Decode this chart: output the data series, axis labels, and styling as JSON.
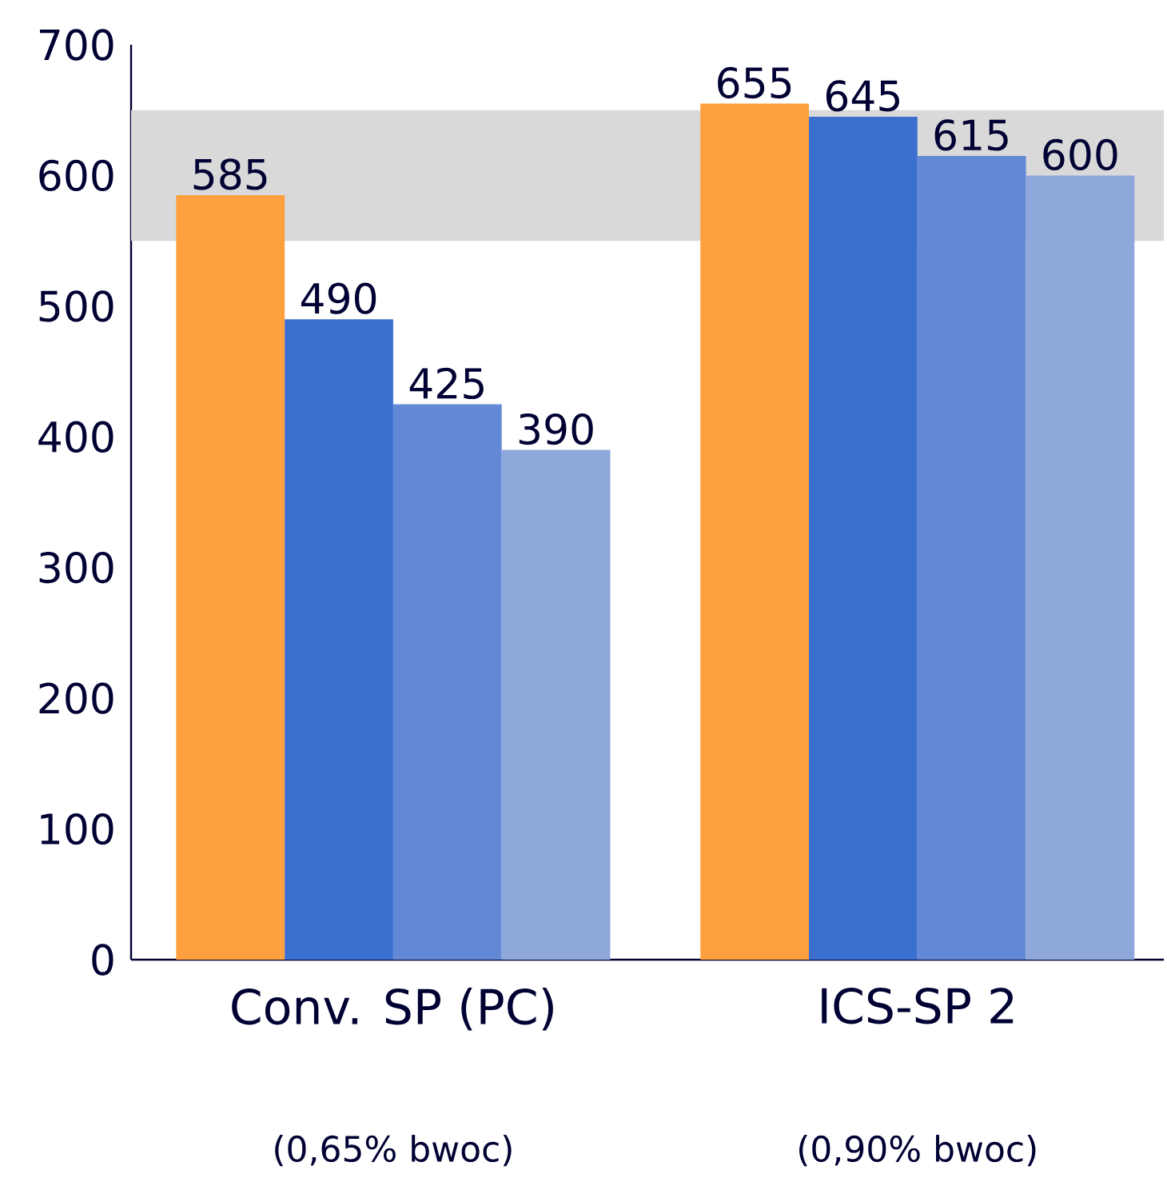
{
  "chart_data": {
    "type": "bar",
    "categories": [
      "Conv. SP (PC)",
      "ICS-SP 2"
    ],
    "series": [
      {
        "color": "#fda03d",
        "values": [
          585,
          655
        ]
      },
      {
        "color": "#3b6fcf",
        "values": [
          490,
          645
        ]
      },
      {
        "color": "#6389d6",
        "values": [
          425,
          615
        ]
      },
      {
        "color": "#8fa8dc",
        "values": [
          390,
          600
        ]
      }
    ],
    "ylim": [
      0,
      700
    ],
    "yticks": [
      0,
      100,
      200,
      300,
      400,
      500,
      600,
      700
    ],
    "bands": [
      {
        "axis": "y",
        "from": 550,
        "to": 650,
        "color": "#d9d9d9"
      }
    ],
    "annotations": [
      "(0,65% bwoc)",
      "(0,90% bwoc)"
    ],
    "data_labels": true
  }
}
